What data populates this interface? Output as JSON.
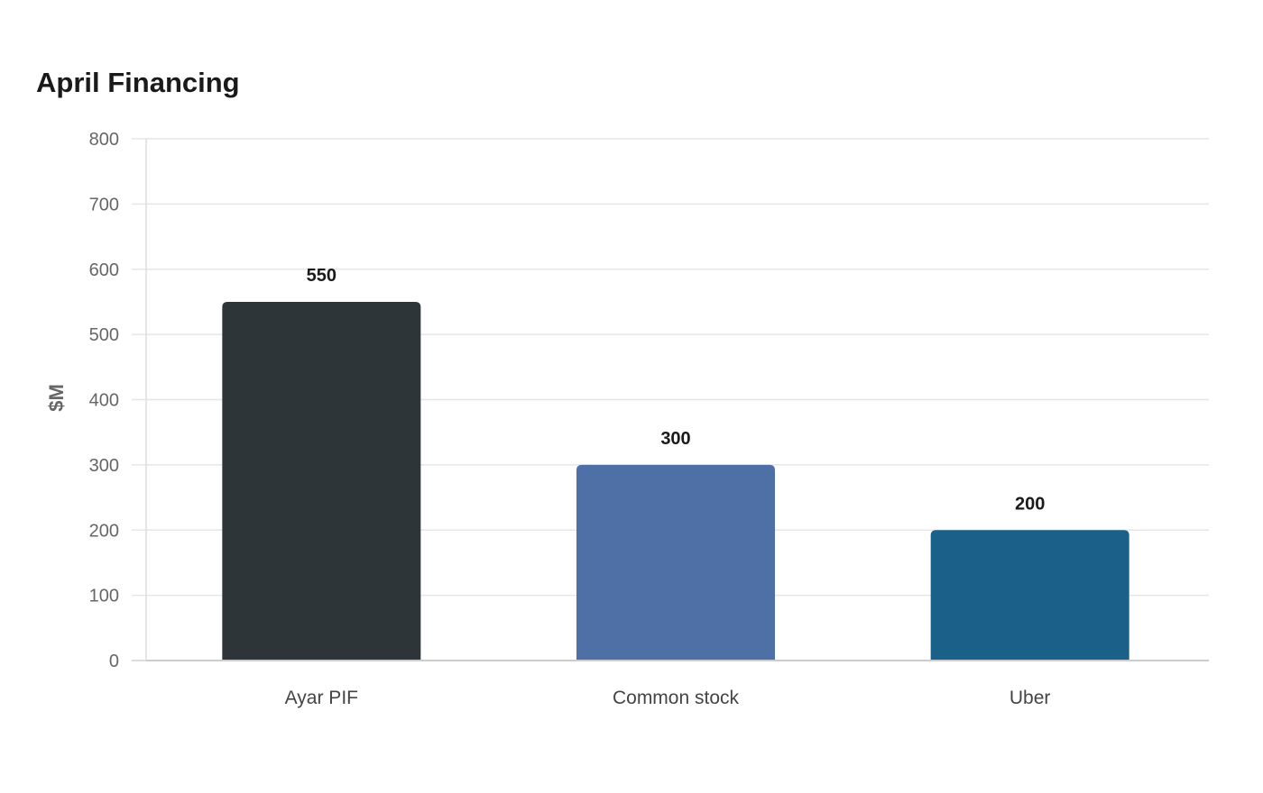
{
  "chart_data": {
    "type": "bar",
    "title": "April Financing",
    "xlabel": "",
    "ylabel": "$M",
    "categories": [
      "Ayar PIF",
      "Common stock",
      "Uber"
    ],
    "values": [
      550,
      300,
      200
    ],
    "colors": [
      "#2e3538",
      "#4e70a6",
      "#1a6089"
    ],
    "ylim": [
      0,
      800
    ],
    "yticks": [
      0,
      100,
      200,
      300,
      400,
      500,
      600,
      700,
      800
    ],
    "grid": true,
    "data_labels": true
  }
}
